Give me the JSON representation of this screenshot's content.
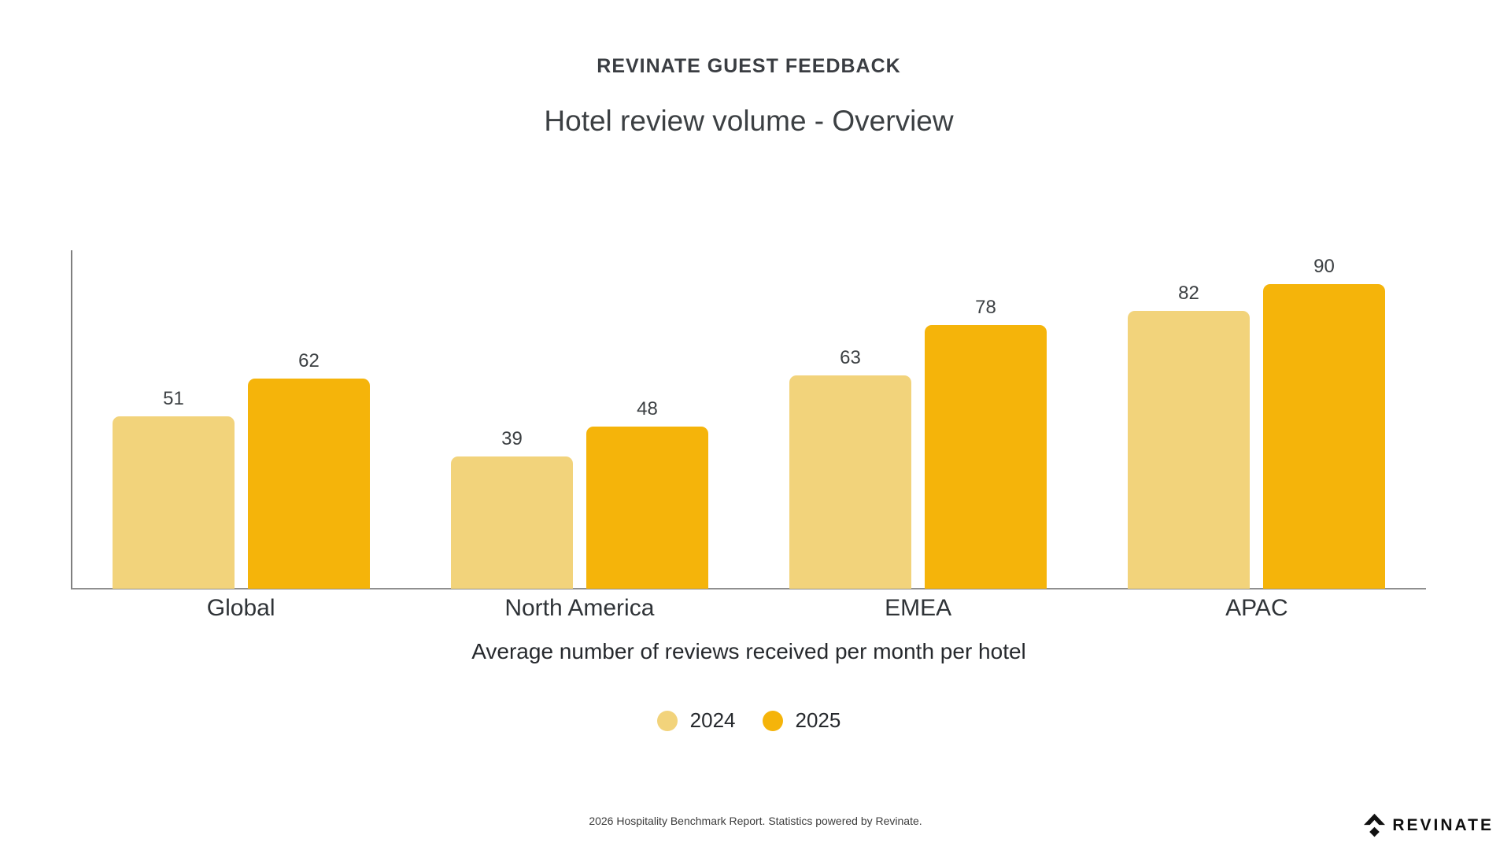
{
  "header": {
    "eyebrow": "REVINATE GUEST FEEDBACK",
    "title": "Hotel review volume - Overview"
  },
  "chart_data": {
    "type": "bar",
    "categories": [
      "Global",
      "North America",
      "EMEA",
      "APAC"
    ],
    "series": [
      {
        "name": "2024",
        "color": "#F2D37B",
        "values": [
          51,
          39,
          63,
          82
        ]
      },
      {
        "name": "2025",
        "color": "#F5B40A",
        "values": [
          62,
          48,
          78,
          90
        ]
      }
    ],
    "title": "Hotel review volume - Overview",
    "xlabel": "Average number of reviews received per month per hotel",
    "ylabel": "",
    "ylim": [
      0,
      100
    ],
    "grid": false,
    "legend_position": "bottom",
    "value_labels_shown": true
  },
  "footer": {
    "note": "2026 Hospitality Benchmark Report. Statistics powered by Revinate."
  },
  "logo": {
    "text": "REVINATE",
    "icon": "revinate-diamond-icon"
  }
}
